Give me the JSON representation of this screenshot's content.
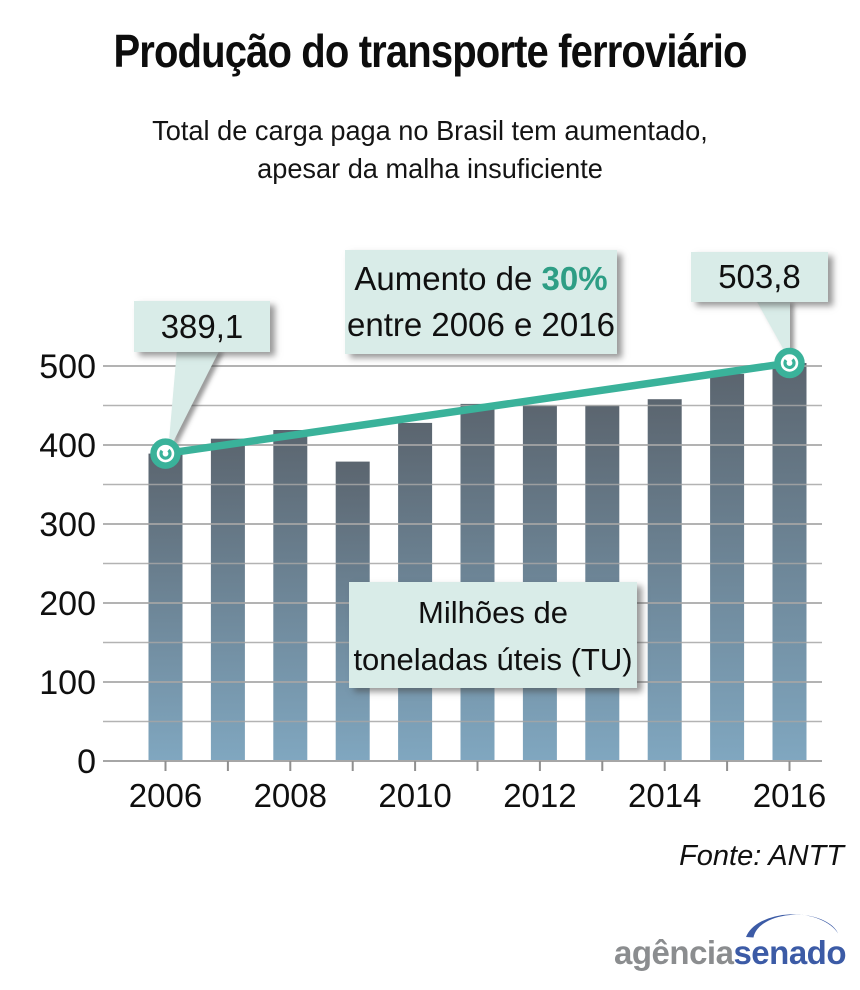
{
  "header": {
    "title": "Produção do transporte ferroviário",
    "subtitle_line1": "Total de carga paga no Brasil tem aumentado,",
    "subtitle_line2": "apesar da malha insuficiente"
  },
  "chart_data": {
    "type": "bar",
    "title": "Produção do transporte ferroviário",
    "categories": [
      2006,
      2007,
      2008,
      2009,
      2010,
      2011,
      2012,
      2013,
      2014,
      2015,
      2016
    ],
    "values": [
      389.1,
      408,
      419,
      379,
      428,
      452,
      450,
      450,
      458,
      490,
      503.8
    ],
    "unit": "Milhões de toneladas úteis (TU)",
    "ylim": [
      0,
      500
    ],
    "grid_step": 50,
    "y_ticks": [
      0,
      100,
      200,
      300,
      400,
      500
    ],
    "x_tick_labels": [
      "2006",
      "2008",
      "2010",
      "2012",
      "2014",
      "2016"
    ],
    "grid": true,
    "trend": {
      "start_year": 2006,
      "start_value": 389.1,
      "end_year": 2016,
      "end_value": 503.8,
      "start_label": "389,1",
      "end_label": "503,8",
      "increase_pct": "30%"
    },
    "colors": {
      "bar_top": "#5b656f",
      "bar_bottom": "#80a7c0",
      "line": "#3ab29a",
      "grid": "#a6a6a6",
      "callout_bg": "#d9ece8",
      "accent_text": "#2e9e85"
    }
  },
  "callouts": {
    "start_label": "389,1",
    "end_label": "503,8",
    "increase_prefix": "Aumento de ",
    "increase_value": "30%",
    "increase_line2": "entre 2006 e 2016",
    "unit_line1": "Milhões de",
    "unit_line2": "toneladas úteis (TU)"
  },
  "footer": {
    "source": "Fonte: ANTT",
    "logo_gray": "agência",
    "logo_blue": "senado",
    "logo_gray_color": "#8b8d8f",
    "logo_blue_color": "#3c5ba6"
  }
}
